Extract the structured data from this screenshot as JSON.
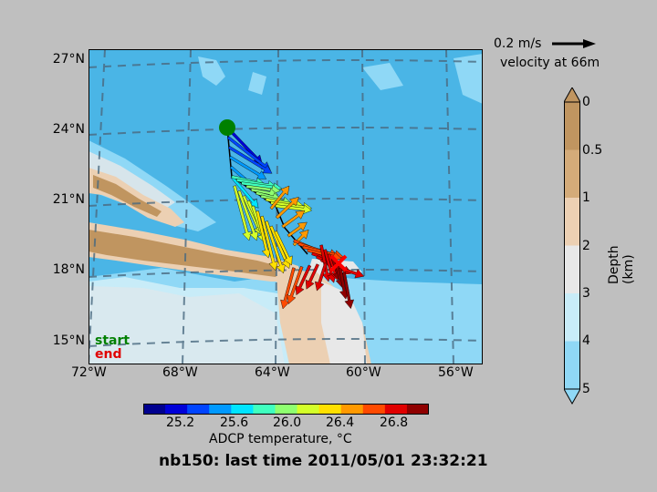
{
  "title": "nb150: last time 2011/05/01 23:32:21",
  "lat_ticks": [
    "27°N",
    "24°N",
    "21°N",
    "18°N",
    "15°N"
  ],
  "lon_ticks": [
    "72°W",
    "68°W",
    "64°W",
    "60°W",
    "56°W"
  ],
  "temperature_colorbar": {
    "label": "ADCP temperature, °C",
    "ticks": [
      "25.2",
      "25.6",
      "26.0",
      "26.4",
      "26.8"
    ],
    "colors": [
      "#00008f",
      "#0000d8",
      "#0044ff",
      "#0099ff",
      "#00e4ff",
      "#40ffbf",
      "#8fff70",
      "#d4ff2a",
      "#ffe000",
      "#ff9900",
      "#ff4a00",
      "#e00000",
      "#8f0000"
    ]
  },
  "depth_colorbar": {
    "label": "Depth (km)",
    "ticks": [
      "0",
      "0.5",
      "1",
      "2",
      "3",
      "4",
      "5"
    ],
    "colors": [
      "#c09560",
      "#d4ab79",
      "#ecd0b3",
      "#e8e8e8",
      "#c8ecf8",
      "#8fd8f6"
    ]
  },
  "velocity_scale": {
    "value_label": "0.2 m/s",
    "depth_label": "velocity at 66m"
  },
  "legend": {
    "start_label": "start",
    "start_color": "#008000",
    "end_label": "end",
    "end_color": "#e00000"
  },
  "colors": {
    "ocean_deep": "#4ab5e6",
    "ocean_mid": "#8fd8f6",
    "shelf": "#e8e8e8",
    "land_low": "#ecd0b3",
    "land_high": "#c09560"
  }
}
